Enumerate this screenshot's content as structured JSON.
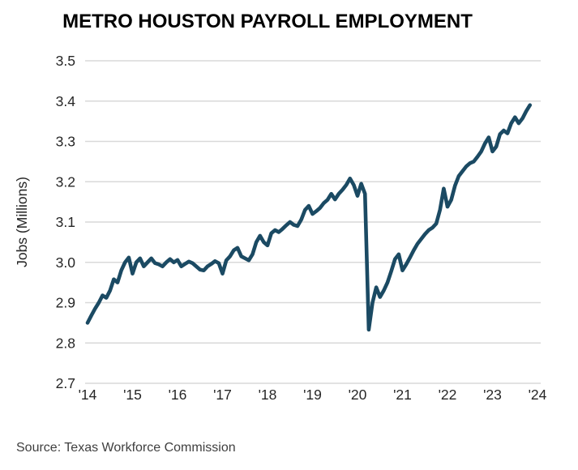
{
  "chart_data": {
    "type": "line",
    "title": "METRO HOUSTON PAYROLL EMPLOYMENT",
    "ylabel": "Jobs (Millions)",
    "xlabel": "",
    "frequency": "monthly",
    "x_start": "2014-01",
    "x_end": "2023-11",
    "x_tick_labels": [
      "'14",
      "'15",
      "'16",
      "'17",
      "'18",
      "'19",
      "'20",
      "'21",
      "'22",
      "'23",
      "'24"
    ],
    "y_ticks": [
      3.5,
      3.4,
      3.3,
      3.2,
      3.1,
      3.0,
      2.9,
      2.8,
      2.7
    ],
    "y_tick_labels": [
      "3.5",
      "3.4",
      "3.3",
      "3.2",
      "3.1",
      "3.0",
      "2.9",
      "2.8",
      "2.7"
    ],
    "ylim": [
      2.7,
      3.5
    ],
    "grid": "horizontal",
    "legend": "none",
    "series": [
      {
        "name": "Metro Houston payroll employment (millions)",
        "color": "#1B4A63",
        "values": [
          2.85,
          2.868,
          2.885,
          2.9,
          2.918,
          2.912,
          2.93,
          2.958,
          2.95,
          2.98,
          3.0,
          3.012,
          2.972,
          3.0,
          3.01,
          2.99,
          3.0,
          3.01,
          2.998,
          2.995,
          2.99,
          3.0,
          3.008,
          3.0,
          3.006,
          2.99,
          2.996,
          3.002,
          2.998,
          2.99,
          2.982,
          2.98,
          2.99,
          2.996,
          3.003,
          2.998,
          2.972,
          3.005,
          3.015,
          3.03,
          3.036,
          3.015,
          3.01,
          3.005,
          3.02,
          3.05,
          3.066,
          3.05,
          3.042,
          3.072,
          3.08,
          3.075,
          3.083,
          3.092,
          3.1,
          3.093,
          3.09,
          3.106,
          3.13,
          3.14,
          3.12,
          3.127,
          3.135,
          3.147,
          3.155,
          3.17,
          3.156,
          3.17,
          3.18,
          3.192,
          3.208,
          3.192,
          3.165,
          3.195,
          3.17,
          2.833,
          2.9,
          2.938,
          2.914,
          2.93,
          2.95,
          2.978,
          3.008,
          3.02,
          2.98,
          2.995,
          3.012,
          3.03,
          3.046,
          3.058,
          3.07,
          3.08,
          3.086,
          3.096,
          3.13,
          3.183,
          3.138,
          3.155,
          3.19,
          3.214,
          3.226,
          3.238,
          3.246,
          3.25,
          3.262,
          3.275,
          3.295,
          3.31,
          3.275,
          3.287,
          3.318,
          3.327,
          3.32,
          3.345,
          3.36,
          3.345,
          3.357,
          3.375,
          3.39
        ]
      }
    ]
  },
  "source": "Source: Texas Workforce Commission",
  "colors": {
    "line": "#1B4A63",
    "gridline": "#D9D9D9",
    "title_text": "#000000",
    "axis_text": "#262626",
    "source_text": "#3F3F3F",
    "background": "#FFFFFF"
  }
}
